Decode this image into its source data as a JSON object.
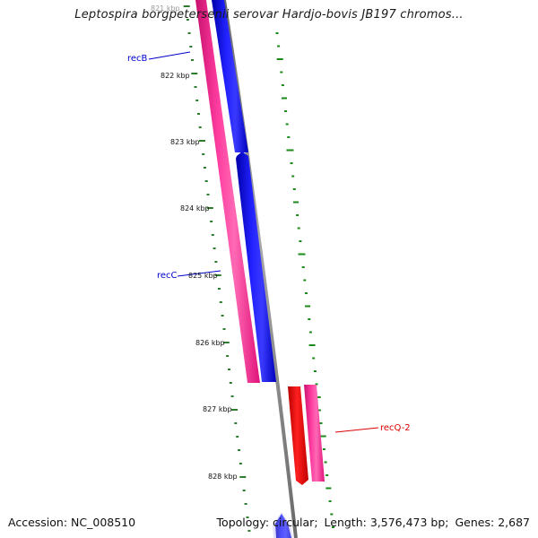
{
  "title": "Leptospira borgpetersenii serovar Hardjo-bovis JB197 chromos...",
  "footer": {
    "accession_label": "Accession:",
    "accession": "NC_008510",
    "topology_label": "Topology:",
    "topology": "circular",
    "length_label": "Length:",
    "length": "3,576,473 bp",
    "genes_label": "Genes:",
    "genes": "2,687"
  },
  "ticks": [
    {
      "label": "821 kbp",
      "faded": true
    },
    {
      "label": "822 kbp"
    },
    {
      "label": "823 kbp"
    },
    {
      "label": "824 kbp"
    },
    {
      "label": "825 kbp"
    },
    {
      "label": "826 kbp"
    },
    {
      "label": "827 kbp"
    },
    {
      "label": "828 kbp"
    }
  ],
  "genes": [
    {
      "name": "recB",
      "color": "#0000cc"
    },
    {
      "name": "recC",
      "color": "#0000cc"
    },
    {
      "name": "recQ-2",
      "color": "#dd0000"
    }
  ],
  "colors": {
    "forward_cds": "#0000ff",
    "forward_gene": "#ff1493",
    "reverse_cds": "#ff0000",
    "backbone": "#808080",
    "gc_skew": "#1a8a1a",
    "tick_mark": "#2e7d2e"
  }
}
